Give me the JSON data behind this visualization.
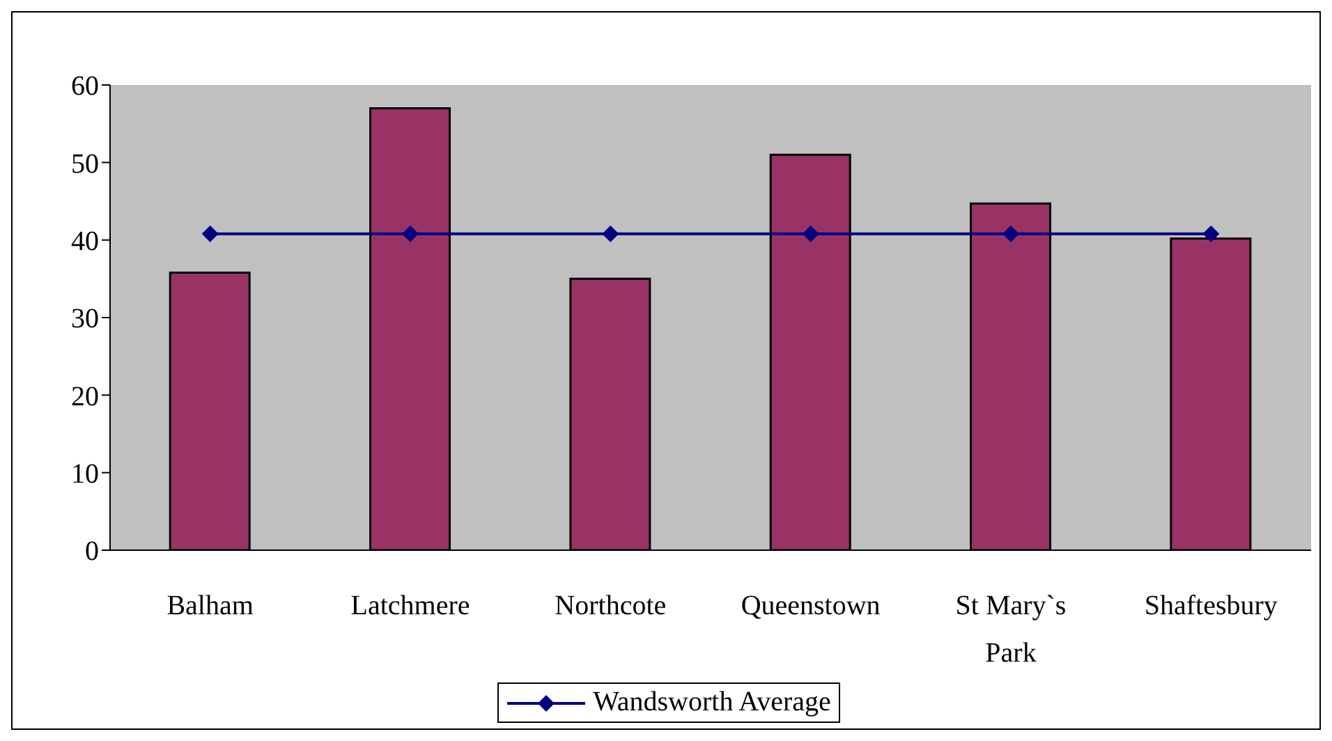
{
  "chart_data": {
    "type": "bar",
    "categories": [
      "Balham",
      "Latchmere",
      "Northcote",
      "Queenstown",
      "St Mary`s Park",
      "Shaftesbury"
    ],
    "series": [
      {
        "color": "#993366",
        "values": [
          35.8,
          57,
          35,
          51,
          44.7,
          40.2
        ]
      },
      {
        "type": "line",
        "name": "Wandsworth Average",
        "color": "#000080",
        "values": [
          40.8,
          40.8,
          40.8,
          40.8,
          40.8,
          40.8
        ]
      }
    ],
    "ylim": [
      0,
      60
    ],
    "yticks": [
      0,
      10,
      20,
      30,
      40,
      50,
      60
    ],
    "grid": false,
    "legend": "bottom",
    "marker": "diamond"
  }
}
